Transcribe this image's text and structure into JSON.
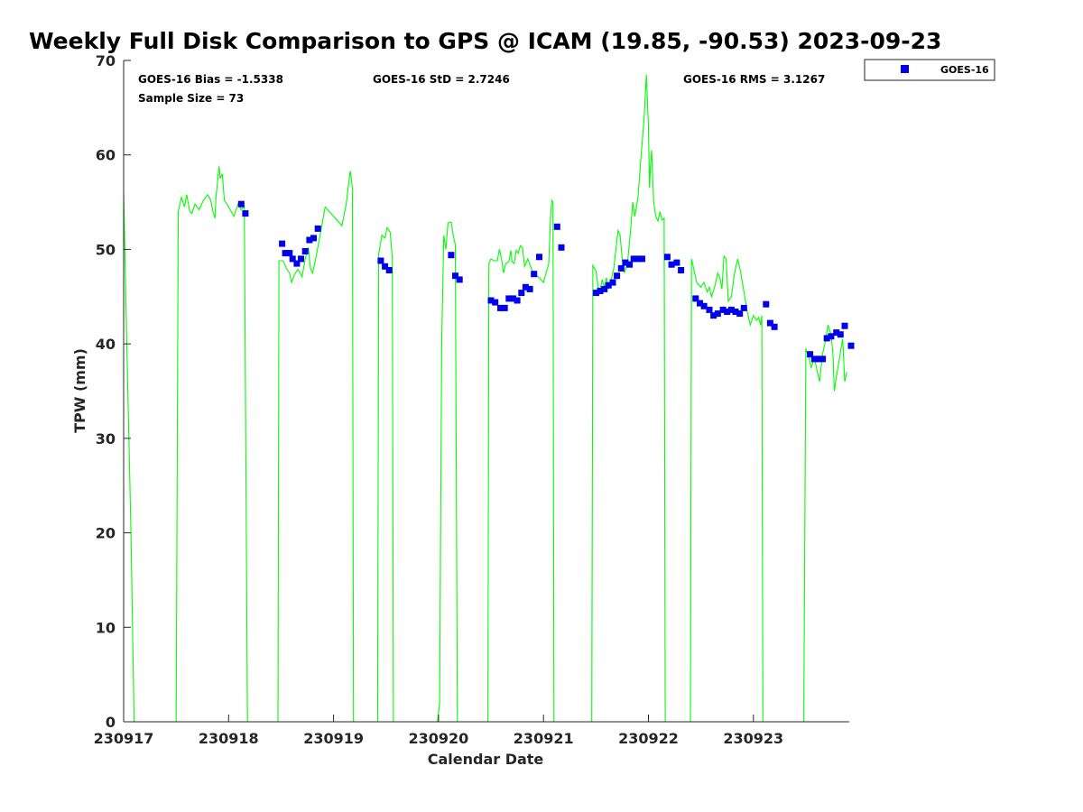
{
  "chart_data": {
    "type": "line",
    "title": "Weekly Full Disk Comparison to GPS @ ICAM (19.85, -90.53) 2023-09-23",
    "xlabel": "Calendar Date",
    "ylabel": "TPW (mm)",
    "xlim": [
      0,
      6.95
    ],
    "ylim": [
      0,
      70
    ],
    "x_tick_labels": [
      "230917",
      "230918",
      "230919",
      "230920",
      "230921",
      "230922",
      "230923"
    ],
    "y_ticks": [
      0,
      10,
      20,
      30,
      40,
      50,
      60,
      70
    ],
    "grid": false,
    "legend_position": "top-right",
    "stats": {
      "bias": "GOES-16 Bias = -1.5338",
      "std": "GOES-16 StD = 2.7246",
      "rms": "GOES-16 RMS = 3.1267",
      "sample": "Sample Size = 73"
    },
    "series": [
      {
        "name": "",
        "color": "#00ff00",
        "style": "line",
        "segments": [
          [
            [
              0.0,
              56
            ],
            [
              0.03,
              40
            ],
            [
              0.07,
              20
            ],
            [
              0.1,
              0
            ]
          ],
          [
            [
              0.5,
              0
            ],
            [
              0.52,
              54
            ],
            [
              0.55,
              55.5
            ],
            [
              0.58,
              54.5
            ],
            [
              0.6,
              55.8
            ],
            [
              0.63,
              54
            ],
            [
              0.65,
              53.8
            ],
            [
              0.68,
              54.8
            ],
            [
              0.72,
              54.2
            ],
            [
              0.76,
              55.2
            ],
            [
              0.8,
              55.8
            ],
            [
              0.83,
              55.2
            ],
            [
              0.85,
              54
            ],
            [
              0.87,
              53.3
            ],
            [
              0.88,
              55.5
            ],
            [
              0.91,
              58.8
            ],
            [
              0.92,
              57.5
            ],
            [
              0.94,
              58
            ],
            [
              0.96,
              55.2
            ],
            [
              1.0,
              54.5
            ],
            [
              1.05,
              53.5
            ],
            [
              1.09,
              54.8
            ],
            [
              1.12,
              54.2
            ],
            [
              1.15,
              54.6
            ],
            [
              1.18,
              0
            ]
          ],
          [
            [
              1.47,
              0
            ],
            [
              1.48,
              48.8
            ],
            [
              1.52,
              48.8
            ],
            [
              1.55,
              48
            ],
            [
              1.58,
              47.5
            ],
            [
              1.6,
              46.5
            ],
            [
              1.63,
              47.4
            ],
            [
              1.66,
              47.9
            ],
            [
              1.7,
              47.1
            ],
            [
              1.73,
              49
            ],
            [
              1.76,
              50.2
            ],
            [
              1.78,
              48
            ],
            [
              1.8,
              47.5
            ],
            [
              1.83,
              49
            ],
            [
              1.88,
              52
            ],
            [
              1.92,
              54.5
            ],
            [
              2.0,
              53.5
            ],
            [
              2.08,
              52.5
            ],
            [
              2.12,
              54.8
            ],
            [
              2.15,
              57.5
            ],
            [
              2.16,
              58.3
            ],
            [
              2.18,
              56.5
            ],
            [
              2.19,
              0
            ]
          ],
          [
            [
              2.42,
              0
            ],
            [
              2.43,
              49.5
            ],
            [
              2.46,
              51.5
            ],
            [
              2.49,
              51.2
            ],
            [
              2.51,
              52.3
            ],
            [
              2.54,
              51.8
            ],
            [
              2.56,
              49
            ],
            [
              2.57,
              0
            ]
          ],
          [
            [
              2.99,
              0
            ],
            [
              3.01,
              2
            ],
            [
              3.03,
              40
            ],
            [
              3.05,
              51.5
            ],
            [
              3.07,
              50
            ],
            [
              3.09,
              52.8
            ],
            [
              3.12,
              52.9
            ],
            [
              3.14,
              51.5
            ],
            [
              3.16,
              50.5
            ],
            [
              3.18,
              0
            ]
          ],
          [
            [
              3.47,
              0
            ],
            [
              3.48,
              48.5
            ],
            [
              3.5,
              49
            ],
            [
              3.53,
              48.8
            ],
            [
              3.56,
              48.8
            ],
            [
              3.58,
              50
            ],
            [
              3.6,
              49
            ],
            [
              3.62,
              47.5
            ],
            [
              3.64,
              48.5
            ],
            [
              3.67,
              48.7
            ],
            [
              3.69,
              49.9
            ],
            [
              3.7,
              48.7
            ],
            [
              3.72,
              48.5
            ],
            [
              3.74,
              49.9
            ],
            [
              3.76,
              49.6
            ],
            [
              3.78,
              50.4
            ],
            [
              3.8,
              50.2
            ],
            [
              3.82,
              48.2
            ],
            [
              3.85,
              49
            ],
            [
              3.9,
              47.5
            ],
            [
              3.96,
              47
            ],
            [
              4.0,
              46.5
            ],
            [
              4.05,
              48.5
            ],
            [
              4.07,
              54
            ],
            [
              4.08,
              55.2
            ],
            [
              4.09,
              55
            ],
            [
              4.1,
              0
            ]
          ],
          [
            [
              4.46,
              0
            ],
            [
              4.47,
              48.3
            ],
            [
              4.5,
              47.7
            ],
            [
              4.52,
              46
            ],
            [
              4.54,
              45.8
            ],
            [
              4.56,
              46.8
            ],
            [
              4.58,
              46
            ],
            [
              4.6,
              47
            ],
            [
              4.62,
              45.8
            ],
            [
              4.64,
              46.5
            ],
            [
              4.67,
              48
            ],
            [
              4.69,
              50
            ],
            [
              4.71,
              52
            ],
            [
              4.73,
              51.5
            ],
            [
              4.75,
              49
            ],
            [
              4.77,
              47.5
            ],
            [
              4.8,
              48.5
            ],
            [
              4.83,
              52
            ],
            [
              4.85,
              55
            ],
            [
              4.87,
              53.5
            ],
            [
              4.9,
              55.5
            ],
            [
              4.93,
              60
            ],
            [
              4.96,
              64
            ],
            [
              4.98,
              68.5
            ],
            [
              5.0,
              63
            ],
            [
              5.01,
              56.5
            ],
            [
              5.02,
              59
            ],
            [
              5.03,
              60.5
            ],
            [
              5.04,
              57.5
            ],
            [
              5.05,
              55
            ],
            [
              5.07,
              53.5
            ],
            [
              5.09,
              53
            ],
            [
              5.11,
              54
            ],
            [
              5.13,
              53.1
            ],
            [
              5.15,
              53.3
            ],
            [
              5.16,
              0
            ]
          ],
          [
            [
              5.4,
              0
            ],
            [
              5.41,
              49
            ],
            [
              5.43,
              48
            ],
            [
              5.46,
              46.5
            ],
            [
              5.5,
              46
            ],
            [
              5.53,
              46.5
            ],
            [
              5.56,
              45.5
            ],
            [
              5.58,
              46
            ],
            [
              5.6,
              45
            ],
            [
              5.63,
              46
            ],
            [
              5.66,
              47.5
            ],
            [
              5.68,
              47
            ],
            [
              5.7,
              45.8
            ],
            [
              5.72,
              49.3
            ],
            [
              5.74,
              49
            ],
            [
              5.76,
              44.5
            ],
            [
              5.79,
              45
            ],
            [
              5.82,
              47.5
            ],
            [
              5.85,
              49
            ],
            [
              5.88,
              47.5
            ],
            [
              5.91,
              45.5
            ],
            [
              5.94,
              43.5
            ],
            [
              5.97,
              42
            ],
            [
              6.0,
              43
            ],
            [
              6.03,
              42.5
            ],
            [
              6.05,
              42.8
            ],
            [
              6.07,
              42
            ],
            [
              6.08,
              43
            ],
            [
              6.09,
              0
            ]
          ],
          [
            [
              6.48,
              0
            ],
            [
              6.5,
              39.5
            ],
            [
              6.53,
              38.5
            ],
            [
              6.55,
              37.5
            ],
            [
              6.58,
              38.5
            ],
            [
              6.6,
              37.5
            ],
            [
              6.63,
              36
            ],
            [
              6.66,
              39
            ],
            [
              6.69,
              40.5
            ],
            [
              6.71,
              42
            ],
            [
              6.74,
              41
            ],
            [
              6.76,
              38.5
            ],
            [
              6.77,
              35
            ],
            [
              6.79,
              36.5
            ],
            [
              6.82,
              38.5
            ],
            [
              6.85,
              40.5
            ],
            [
              6.87,
              36
            ],
            [
              6.89,
              37
            ]
          ]
        ]
      },
      {
        "name": "GOES-16",
        "color": "#0000ee",
        "style": "markers",
        "points": [
          [
            1.12,
            54.8
          ],
          [
            1.16,
            53.8
          ],
          [
            1.51,
            50.6
          ],
          [
            1.54,
            49.6
          ],
          [
            1.58,
            49.6
          ],
          [
            1.61,
            49.0
          ],
          [
            1.65,
            48.5
          ],
          [
            1.69,
            49.0
          ],
          [
            1.73,
            49.8
          ],
          [
            1.77,
            51.0
          ],
          [
            1.81,
            51.2
          ],
          [
            1.85,
            52.2
          ],
          [
            2.45,
            48.8
          ],
          [
            2.49,
            48.2
          ],
          [
            2.53,
            47.8
          ],
          [
            3.12,
            49.4
          ],
          [
            3.16,
            47.2
          ],
          [
            3.2,
            46.8
          ],
          [
            3.5,
            44.6
          ],
          [
            3.54,
            44.4
          ],
          [
            3.59,
            43.8
          ],
          [
            3.63,
            43.8
          ],
          [
            3.67,
            44.8
          ],
          [
            3.71,
            44.8
          ],
          [
            3.75,
            44.6
          ],
          [
            3.79,
            45.4
          ],
          [
            3.83,
            46.0
          ],
          [
            3.87,
            45.8
          ],
          [
            3.91,
            47.4
          ],
          [
            3.96,
            49.2
          ],
          [
            4.13,
            52.4
          ],
          [
            4.17,
            50.2
          ],
          [
            4.5,
            45.4
          ],
          [
            4.54,
            45.6
          ],
          [
            4.58,
            45.8
          ],
          [
            4.62,
            46.2
          ],
          [
            4.66,
            46.5
          ],
          [
            4.7,
            47.2
          ],
          [
            4.74,
            48.0
          ],
          [
            4.78,
            48.6
          ],
          [
            4.82,
            48.4
          ],
          [
            4.86,
            49.0
          ],
          [
            4.9,
            49.0
          ],
          [
            4.94,
            49.0
          ],
          [
            5.18,
            49.2
          ],
          [
            5.22,
            48.4
          ],
          [
            5.27,
            48.6
          ],
          [
            5.31,
            47.8
          ],
          [
            5.45,
            44.8
          ],
          [
            5.49,
            44.3
          ],
          [
            5.53,
            44.0
          ],
          [
            5.58,
            43.6
          ],
          [
            5.62,
            43.0
          ],
          [
            5.66,
            43.2
          ],
          [
            5.71,
            43.6
          ],
          [
            5.75,
            43.4
          ],
          [
            5.79,
            43.6
          ],
          [
            5.83,
            43.4
          ],
          [
            5.87,
            43.2
          ],
          [
            5.91,
            43.8
          ],
          [
            6.12,
            44.2
          ],
          [
            6.16,
            42.2
          ],
          [
            6.2,
            41.8
          ],
          [
            6.54,
            38.9
          ],
          [
            6.58,
            38.4
          ],
          [
            6.62,
            38.4
          ],
          [
            6.66,
            38.4
          ],
          [
            6.7,
            40.6
          ],
          [
            6.74,
            40.8
          ],
          [
            6.79,
            41.2
          ],
          [
            6.83,
            41.0
          ],
          [
            6.87,
            41.9
          ],
          [
            6.93,
            39.8
          ]
        ]
      }
    ]
  }
}
